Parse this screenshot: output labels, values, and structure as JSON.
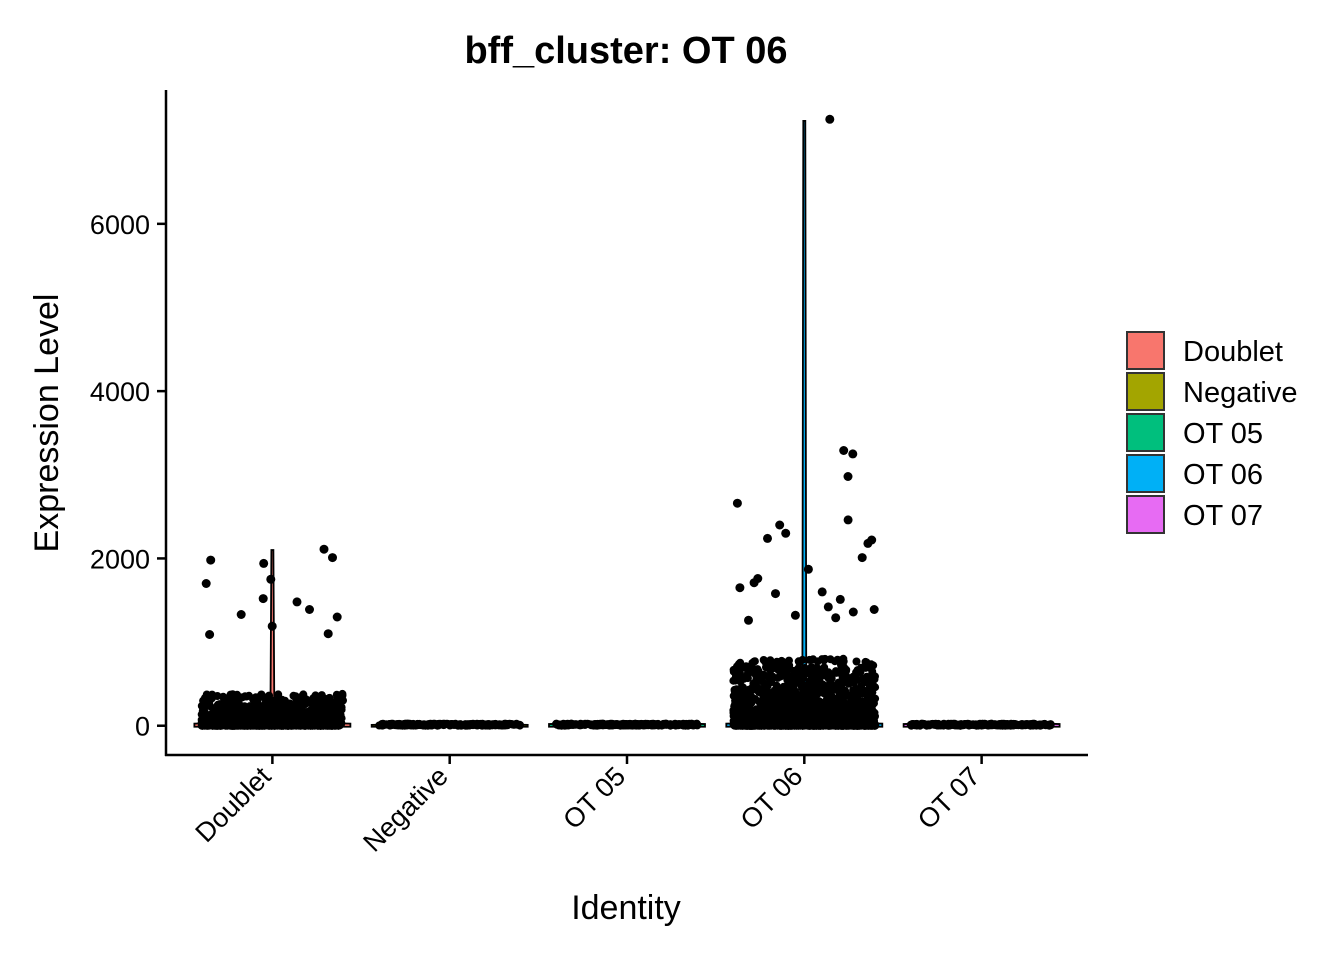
{
  "chart_data": {
    "type": "violin",
    "title": "bff_cluster: OT 06",
    "xlabel": "Identity",
    "ylabel": "Expression Level",
    "categories": [
      "Doublet",
      "Negative",
      "OT 05",
      "OT 06",
      "OT 07"
    ],
    "colors": {
      "Doublet": "#F8766D",
      "Negative": "#A3A500",
      "OT 05": "#00BF7D",
      "OT 06": "#00B0F6",
      "OT 07": "#E76BF3"
    },
    "ylim": [
      -350,
      7600
    ],
    "yticks": [
      0,
      2000,
      4000,
      6000
    ],
    "grid": false,
    "legend": {
      "position": "right",
      "entries": [
        "Doublet",
        "Negative",
        "OT 05",
        "OT 06",
        "OT 07"
      ]
    },
    "violin_max": {
      "Doublet": 2100,
      "Negative": 10,
      "OT 05": 20,
      "OT 06": 7230,
      "OT 07": 20
    },
    "outlier_points": [
      {
        "group": "Doublet",
        "y": 2110
      },
      {
        "group": "Doublet",
        "y": 2010
      },
      {
        "group": "Doublet",
        "y": 1980
      },
      {
        "group": "Doublet",
        "y": 1940
      },
      {
        "group": "Doublet",
        "y": 1750
      },
      {
        "group": "Doublet",
        "y": 1700
      },
      {
        "group": "Doublet",
        "y": 1520
      },
      {
        "group": "Doublet",
        "y": 1480
      },
      {
        "group": "Doublet",
        "y": 1390
      },
      {
        "group": "Doublet",
        "y": 1330
      },
      {
        "group": "Doublet",
        "y": 1300
      },
      {
        "group": "Doublet",
        "y": 1190
      },
      {
        "group": "Doublet",
        "y": 1100
      },
      {
        "group": "Doublet",
        "y": 1090
      },
      {
        "group": "OT 06",
        "y": 7250
      },
      {
        "group": "OT 06",
        "y": 3290
      },
      {
        "group": "OT 06",
        "y": 3250
      },
      {
        "group": "OT 06",
        "y": 2980
      },
      {
        "group": "OT 06",
        "y": 2660
      },
      {
        "group": "OT 06",
        "y": 2460
      },
      {
        "group": "OT 06",
        "y": 2400
      },
      {
        "group": "OT 06",
        "y": 2300
      },
      {
        "group": "OT 06",
        "y": 2240
      },
      {
        "group": "OT 06",
        "y": 2220
      },
      {
        "group": "OT 06",
        "y": 2180
      },
      {
        "group": "OT 06",
        "y": 2010
      },
      {
        "group": "OT 06",
        "y": 1870
      },
      {
        "group": "OT 06",
        "y": 1760
      },
      {
        "group": "OT 06",
        "y": 1710
      },
      {
        "group": "OT 06",
        "y": 1650
      },
      {
        "group": "OT 06",
        "y": 1600
      },
      {
        "group": "OT 06",
        "y": 1580
      },
      {
        "group": "OT 06",
        "y": 1510
      },
      {
        "group": "OT 06",
        "y": 1420
      },
      {
        "group": "OT 06",
        "y": 1390
      },
      {
        "group": "OT 06",
        "y": 1360
      },
      {
        "group": "OT 06",
        "y": 1320
      },
      {
        "group": "OT 06",
        "y": 1290
      },
      {
        "group": "OT 06",
        "y": 1260
      }
    ]
  }
}
